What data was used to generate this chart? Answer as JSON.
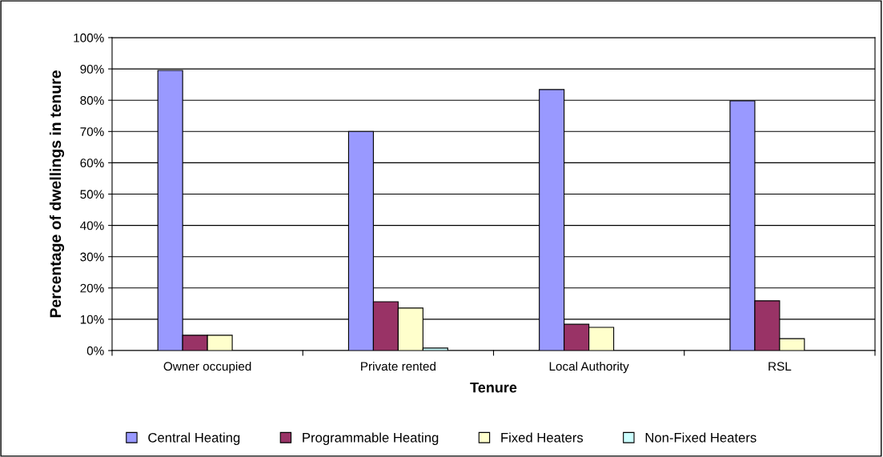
{
  "chart_data": {
    "type": "bar",
    "xlabel": "Tenure",
    "ylabel": "Percentage of dwellings in tenure",
    "categories": [
      "Owner occupied",
      "Private rented",
      "Local Authority",
      "RSL"
    ],
    "series": [
      {
        "name": "Central Heating",
        "color": "#9999ff",
        "values": [
          89.5,
          70,
          83.4,
          79.8
        ]
      },
      {
        "name": "Programmable Heating",
        "color": "#993366",
        "values": [
          4.9,
          15.6,
          8.4,
          15.9
        ]
      },
      {
        "name": "Fixed Heaters",
        "color": "#ffffcc",
        "values": [
          4.9,
          13.6,
          7.4,
          3.8
        ]
      },
      {
        "name": "Non-Fixed Heaters",
        "color": "#ccffff",
        "values": [
          null,
          0.8,
          null,
          null
        ]
      }
    ],
    "ylim": [
      0,
      100
    ],
    "yticks": [
      {
        "value": 0,
        "label": "0%"
      },
      {
        "value": 10,
        "label": "10%"
      },
      {
        "value": 20,
        "label": "20%"
      },
      {
        "value": 30,
        "label": "30%"
      },
      {
        "value": 40,
        "label": "40%"
      },
      {
        "value": 50,
        "label": "50%"
      },
      {
        "value": 60,
        "label": "60%"
      },
      {
        "value": 70,
        "label": "70%"
      },
      {
        "value": 80,
        "label": "80%"
      },
      {
        "value": 90,
        "label": "90%"
      },
      {
        "value": 100,
        "label": "100%"
      }
    ],
    "grid": "y",
    "legend": "bottom"
  }
}
